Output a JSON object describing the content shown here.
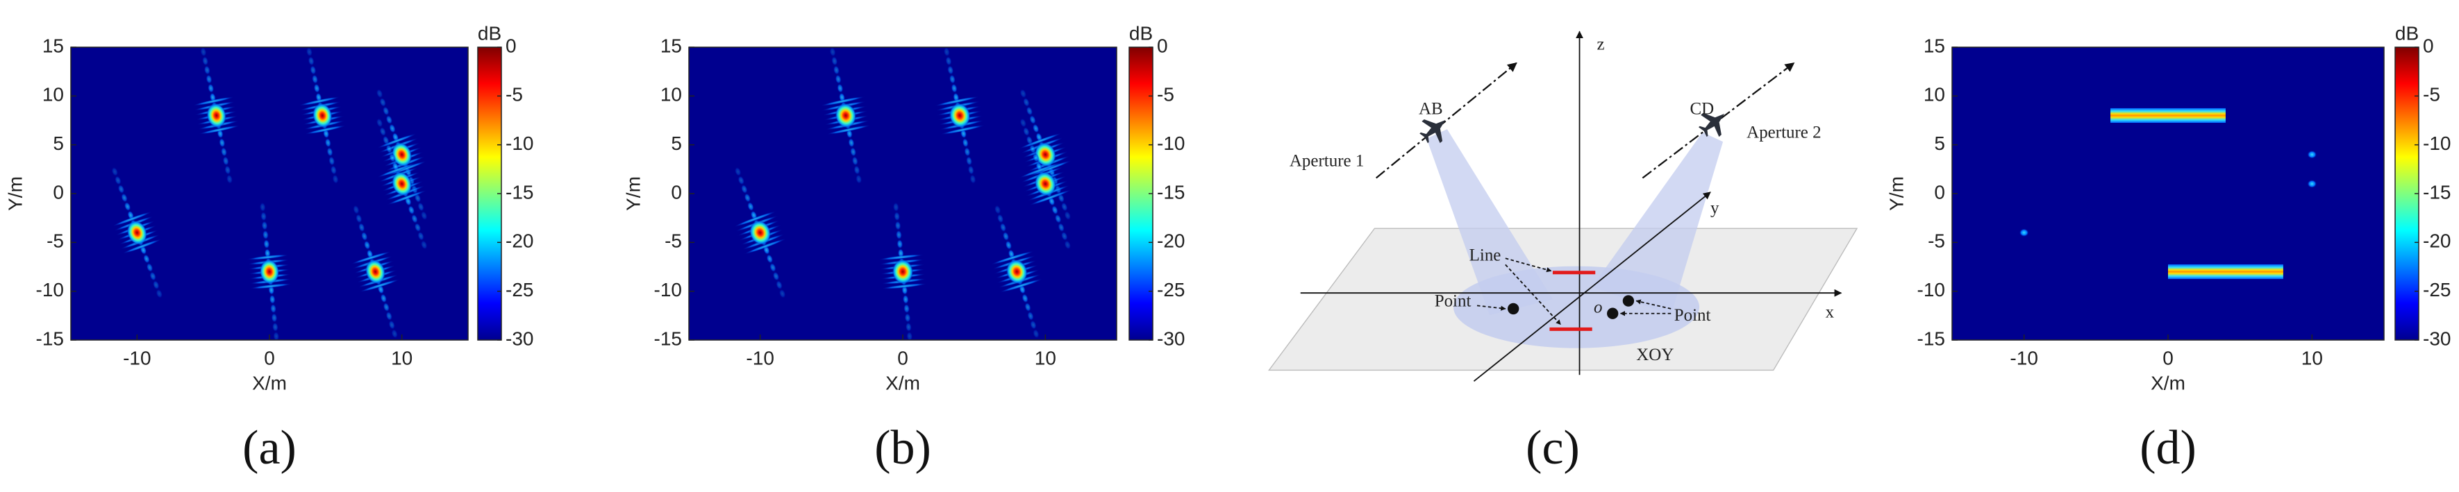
{
  "chart_data": [
    {
      "type": "heatmap",
      "colormap": "jet",
      "panel_label": "(a)",
      "xlabel": "X/m",
      "ylabel": "Y/m",
      "xlim": [
        -15,
        15
      ],
      "ylim": [
        -15,
        15
      ],
      "xticks": [
        -10,
        0,
        10
      ],
      "yticks": [
        -15,
        -10,
        -5,
        0,
        5,
        10,
        15
      ],
      "colorbar": {
        "label": "dB",
        "clim": [
          -30,
          0
        ],
        "ticks": [
          0,
          -5,
          -10,
          -15,
          -20,
          -25,
          -30
        ]
      },
      "targets": [
        {
          "x": -10,
          "y": -4
        },
        {
          "x": -4,
          "y": 8
        },
        {
          "x": 4,
          "y": 8
        },
        {
          "x": 10,
          "y": 4
        },
        {
          "x": 10,
          "y": 1
        },
        {
          "x": 0,
          "y": -8
        },
        {
          "x": 8,
          "y": -8
        }
      ]
    },
    {
      "type": "heatmap",
      "colormap": "jet",
      "panel_label": "(b)",
      "xlabel": "X/m",
      "ylabel": "Y/m",
      "xlim": [
        -15,
        15
      ],
      "ylim": [
        -15,
        15
      ],
      "xticks": [
        -10,
        0,
        10
      ],
      "yticks": [
        -15,
        -10,
        -5,
        0,
        5,
        10,
        15
      ],
      "colorbar": {
        "label": "dB",
        "clim": [
          -30,
          0
        ],
        "ticks": [
          0,
          -5,
          -10,
          -15,
          -20,
          -25,
          -30
        ]
      },
      "targets": [
        {
          "x": -10,
          "y": -4
        },
        {
          "x": -4,
          "y": 8
        },
        {
          "x": 4,
          "y": 8
        },
        {
          "x": 10,
          "y": 4
        },
        {
          "x": 10,
          "y": 1
        },
        {
          "x": 0,
          "y": -8
        },
        {
          "x": 8,
          "y": -8
        }
      ]
    },
    {
      "type": "heatmap",
      "colormap": "jet",
      "panel_label": "(d)",
      "xlabel": "X/m",
      "ylabel": "Y/m",
      "xlim": [
        -15,
        15
      ],
      "ylim": [
        -15,
        15
      ],
      "xticks": [
        -10,
        0,
        10
      ],
      "yticks": [
        -15,
        -10,
        -5,
        0,
        5,
        10,
        15
      ],
      "colorbar": {
        "label": "dB",
        "clim": [
          -30,
          0
        ],
        "ticks": [
          0,
          -5,
          -10,
          -15,
          -20,
          -25,
          -30
        ]
      },
      "line_targets": [
        {
          "x": [
            -4,
            4
          ],
          "y": 8
        },
        {
          "x": [
            0,
            8
          ],
          "y": -8
        }
      ],
      "point_targets": [
        {
          "x": -10,
          "y": -4
        },
        {
          "x": 10,
          "y": 4
        },
        {
          "x": 10,
          "y": 1
        }
      ]
    }
  ],
  "diagram": {
    "panel_label": "(c)",
    "z": "z",
    "y": "y",
    "x": "x",
    "ab": "AB",
    "cd": "CD",
    "aperture1": "Aperture 1",
    "aperture2": "Aperture 2",
    "line": "Line",
    "point_left": "Point",
    "point_right": "Point",
    "origin": "o",
    "plane": "XOY"
  }
}
